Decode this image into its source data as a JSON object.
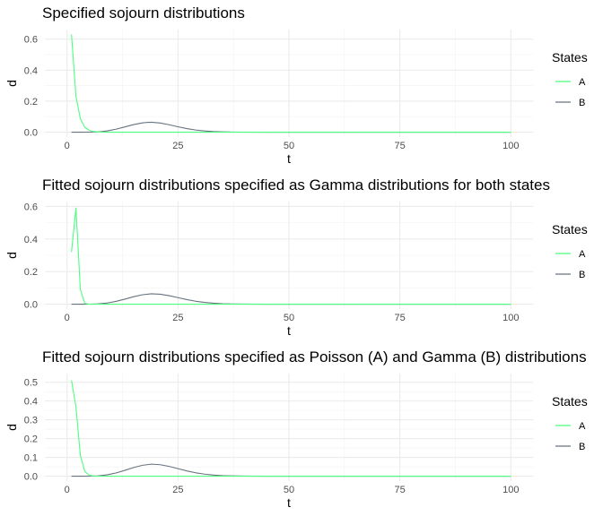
{
  "colors": {
    "A": "#4cff7f",
    "B": "#667380"
  },
  "chart_data": [
    {
      "type": "line",
      "title": "Specified sojourn distributions",
      "xlabel": "t",
      "ylabel": "d",
      "xlim": [
        0,
        100
      ],
      "ylim": [
        0,
        0.63
      ],
      "xticks": [
        0,
        25,
        50,
        75,
        100
      ],
      "yticks": [
        0.0,
        0.2,
        0.4,
        0.6
      ],
      "ytick_labels": [
        "0.0",
        "0.2",
        "0.4",
        "0.6"
      ],
      "grid": true,
      "legend": {
        "title": "States",
        "position": "right",
        "entries": [
          "A",
          "B"
        ]
      },
      "series": [
        {
          "name": "A",
          "x": [
            1,
            2,
            3,
            4,
            5,
            6,
            7,
            8,
            9,
            10,
            15,
            20,
            30,
            40,
            50,
            60,
            70,
            80,
            90,
            100
          ],
          "y": [
            0.63,
            0.233,
            0.086,
            0.032,
            0.012,
            0.004,
            0.002,
            0.001,
            0,
            0,
            0,
            0,
            0,
            0,
            0,
            0,
            0,
            0,
            0,
            0
          ]
        },
        {
          "name": "B",
          "x": [
            1,
            3,
            5,
            7,
            9,
            11,
            13,
            15,
            17,
            18,
            19,
            21,
            23,
            25,
            27,
            29,
            31,
            33,
            35,
            37,
            40,
            45,
            50,
            60,
            70,
            80,
            90,
            100
          ],
          "y": [
            0,
            0,
            0.0002,
            0.002,
            0.008,
            0.019,
            0.034,
            0.049,
            0.06,
            0.063,
            0.064,
            0.059,
            0.048,
            0.035,
            0.023,
            0.014,
            0.008,
            0.004,
            0.002,
            0.001,
            0.0003,
            0,
            0,
            0,
            0,
            0,
            0,
            0
          ]
        }
      ]
    },
    {
      "type": "line",
      "title": "Fitted sojourn distributions specified as Gamma distributions for both states",
      "xlabel": "t",
      "ylabel": "d",
      "xlim": [
        0,
        100
      ],
      "ylim": [
        0,
        0.6
      ],
      "xticks": [
        0,
        25,
        50,
        75,
        100
      ],
      "yticks": [
        0.0,
        0.2,
        0.4,
        0.6
      ],
      "ytick_labels": [
        "0.0",
        "0.2",
        "0.4",
        "0.6"
      ],
      "grid": true,
      "legend": {
        "title": "States",
        "position": "right",
        "entries": [
          "A",
          "B"
        ]
      },
      "series": [
        {
          "name": "A",
          "x": [
            1,
            2,
            3,
            4,
            5,
            6,
            8,
            10,
            20,
            30,
            40,
            50,
            60,
            70,
            80,
            90,
            100
          ],
          "y": [
            0.32,
            0.59,
            0.09,
            0.005,
            0,
            0,
            0,
            0,
            0,
            0,
            0,
            0,
            0,
            0,
            0,
            0,
            0
          ]
        },
        {
          "name": "B",
          "x": [
            1,
            3,
            5,
            7,
            9,
            11,
            13,
            15,
            17,
            19,
            21,
            23,
            25,
            27,
            29,
            31,
            33,
            35,
            37,
            40,
            45,
            50,
            60,
            70,
            80,
            90,
            100
          ],
          "y": [
            0,
            0,
            0.0003,
            0.002,
            0.007,
            0.017,
            0.031,
            0.046,
            0.058,
            0.064,
            0.061,
            0.052,
            0.04,
            0.028,
            0.018,
            0.011,
            0.006,
            0.003,
            0.0015,
            0.0005,
            0,
            0,
            0,
            0,
            0,
            0,
            0
          ]
        }
      ]
    },
    {
      "type": "line",
      "title": "Fitted sojourn distributions specified as Poisson (A) and Gamma (B) distributions",
      "xlabel": "t",
      "ylabel": "d",
      "xlim": [
        0,
        100
      ],
      "ylim": [
        0,
        0.52
      ],
      "xticks": [
        0,
        25,
        50,
        75,
        100
      ],
      "yticks": [
        0.0,
        0.1,
        0.2,
        0.3,
        0.4,
        0.5
      ],
      "ytick_labels": [
        "0.0",
        "0.1",
        "0.2",
        "0.3",
        "0.4",
        "0.5"
      ],
      "grid": true,
      "legend": {
        "title": "States",
        "position": "right",
        "entries": [
          "A",
          "B"
        ]
      },
      "series": [
        {
          "name": "A",
          "x": [
            1,
            2,
            3,
            4,
            5,
            6,
            7,
            8,
            10,
            20,
            30,
            40,
            50,
            60,
            70,
            80,
            90,
            100
          ],
          "y": [
            0.51,
            0.37,
            0.11,
            0.025,
            0.005,
            0.001,
            0,
            0,
            0,
            0,
            0,
            0,
            0,
            0,
            0,
            0,
            0,
            0
          ]
        },
        {
          "name": "B",
          "x": [
            1,
            3,
            5,
            7,
            9,
            11,
            13,
            15,
            17,
            19,
            21,
            23,
            25,
            27,
            29,
            31,
            33,
            35,
            37,
            40,
            45,
            50,
            60,
            70,
            80,
            90,
            100
          ],
          "y": [
            0,
            0,
            0.0003,
            0.002,
            0.007,
            0.017,
            0.031,
            0.046,
            0.058,
            0.064,
            0.061,
            0.052,
            0.04,
            0.028,
            0.018,
            0.011,
            0.006,
            0.003,
            0.0015,
            0.0005,
            0,
            0,
            0,
            0,
            0,
            0,
            0
          ]
        }
      ]
    }
  ]
}
